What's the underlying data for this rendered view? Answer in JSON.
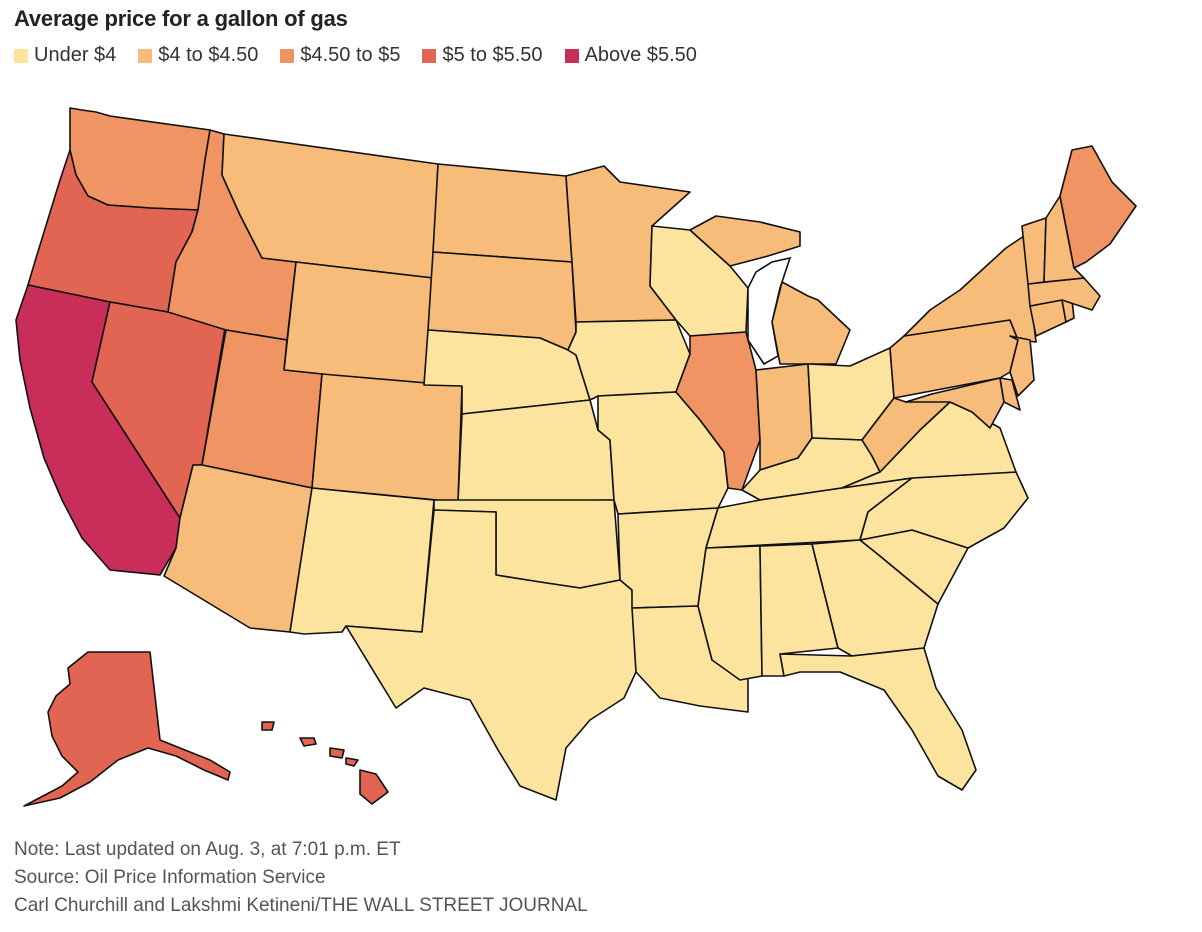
{
  "title": "Average price for a gallon of gas",
  "legend": [
    {
      "label": "Under $4",
      "color": "#fde49e"
    },
    {
      "label": "$4 to $4.50",
      "color": "#f8bc7a"
    },
    {
      "label": "$4.50 to $5",
      "color": "#ef9462"
    },
    {
      "label": "$5 to $5.50",
      "color": "#e26554"
    },
    {
      "label": "Above $5.50",
      "color": "#c92d5a"
    }
  ],
  "tiers": {
    "under_4": "#fde49e",
    "t4_to_4_50": "#f8bc7a",
    "t4_50_to_5": "#ef9462",
    "t5_to_5_50": "#e26554",
    "above_5_50": "#c92d5a"
  },
  "footer": {
    "note": "Note: Last updated on Aug. 3, at 7:01 p.m. ET",
    "source": "Source: Oil Price Information Service",
    "credit": "Carl Churchill and Lakshmi Ketineni/THE WALL STREET JOURNAL"
  }
}
